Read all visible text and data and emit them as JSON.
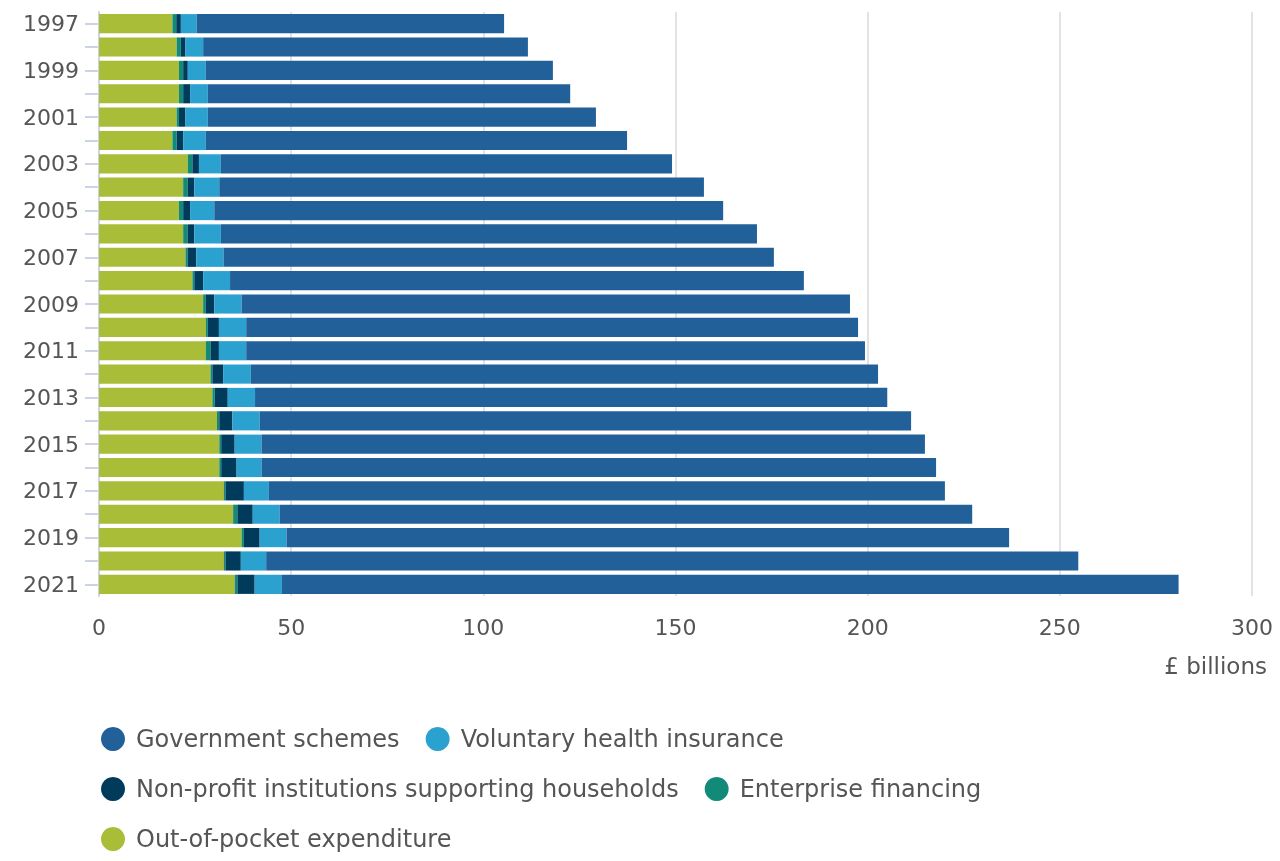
{
  "chart_data": {
    "type": "bar",
    "orientation": "horizontal",
    "stacked": true,
    "xlabel": "£ billions",
    "categories": [
      "1997",
      null,
      "1999",
      null,
      "2001",
      null,
      "2003",
      null,
      "2005",
      null,
      "2007",
      null,
      "2009",
      null,
      "2011",
      null,
      "2013",
      null,
      "2015",
      null,
      "2017",
      null,
      "2019",
      null,
      "2021"
    ],
    "series": [
      {
        "name": "Out-of-pocket expenditure",
        "color": "#a9bd38",
        "values": [
          19.1,
          20.2,
          20.8,
          20.8,
          20.2,
          19.1,
          23.1,
          21.9,
          20.8,
          21.9,
          22.5,
          24.3,
          27.1,
          27.8,
          27.8,
          29.0,
          29.5,
          30.7,
          31.3,
          31.3,
          32.5,
          34.9,
          37.1,
          32.5,
          35.3
        ]
      },
      {
        "name": "Enterprise financing",
        "color": "#128a78",
        "values": [
          1.0,
          1.1,
          1.1,
          1.1,
          0.6,
          1.1,
          1.2,
          1.2,
          1.1,
          1.2,
          0.6,
          0.5,
          0.7,
          0.5,
          1.2,
          0.5,
          0.6,
          0.6,
          0.5,
          0.5,
          0.4,
          1.1,
          0.6,
          0.4,
          0.7
        ]
      },
      {
        "name": "Non-profit institutions supporting households",
        "color": "#003b5c",
        "values": [
          1.2,
          1.2,
          1.2,
          1.8,
          1.7,
          1.7,
          1.7,
          1.7,
          1.8,
          1.7,
          2.2,
          2.3,
          2.2,
          2.9,
          2.2,
          2.8,
          3.4,
          3.4,
          3.5,
          4.0,
          4.8,
          4.0,
          4.1,
          4.0,
          4.5
        ]
      },
      {
        "name": "Voluntary health insurance",
        "color": "#2aa1cf",
        "values": [
          4.1,
          4.6,
          4.7,
          4.6,
          5.8,
          5.9,
          5.7,
          6.5,
          6.3,
          6.9,
          7.1,
          7.0,
          7.1,
          7.1,
          7.1,
          7.2,
          7.1,
          7.1,
          7.0,
          6.5,
          6.5,
          7.0,
          7.0,
          6.6,
          7.1
        ]
      },
      {
        "name": "Government schemes",
        "color": "#22609a",
        "values": [
          80.0,
          84.5,
          90.3,
          94.3,
          101.0,
          109.6,
          117.4,
          126.1,
          132.4,
          139.5,
          143.2,
          149.3,
          158.3,
          159.2,
          161.0,
          163.2,
          164.5,
          169.5,
          172.6,
          175.5,
          175.9,
          180.2,
          188.0,
          211.3,
          233.3
        ]
      }
    ],
    "xlim": [
      0,
      300
    ],
    "xticks": [
      0,
      50,
      100,
      150,
      200,
      250,
      300
    ],
    "grid": "x",
    "legend": "bottom"
  }
}
